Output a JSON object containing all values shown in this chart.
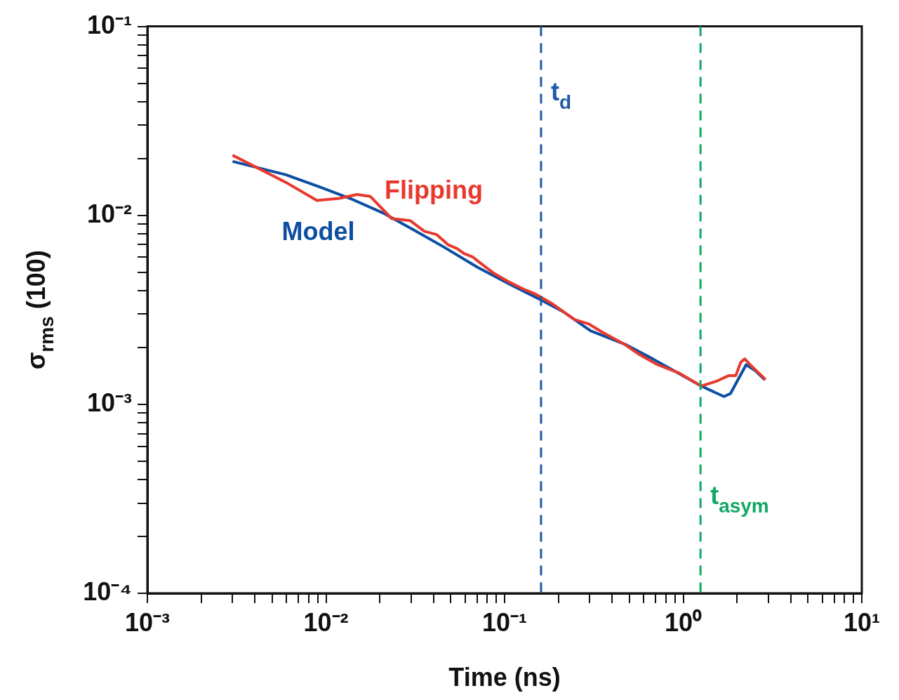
{
  "chart_data": {
    "type": "line",
    "xlabel": "Time (ns)",
    "ylabel": "σ$_{rms}$ (100)",
    "log": "xy",
    "grid": false,
    "xlim": [
      0.001,
      10
    ],
    "ylim": [
      0.0001,
      0.1
    ],
    "xticks": [
      {
        "value": 0.001,
        "label": "10⁻³"
      },
      {
        "value": 0.002,
        "label": null
      },
      {
        "value": 0.003,
        "label": null
      },
      {
        "value": 0.004,
        "label": null
      },
      {
        "value": 0.005,
        "label": null
      },
      {
        "value": 0.006,
        "label": null
      },
      {
        "value": 0.007,
        "label": null
      },
      {
        "value": 0.008,
        "label": null
      },
      {
        "value": 0.009,
        "label": null
      },
      {
        "value": 0.01,
        "label": "10⁻²"
      },
      {
        "value": 0.02,
        "label": null
      },
      {
        "value": 0.03,
        "label": null
      },
      {
        "value": 0.04,
        "label": null
      },
      {
        "value": 0.05,
        "label": null
      },
      {
        "value": 0.06,
        "label": null
      },
      {
        "value": 0.07,
        "label": null
      },
      {
        "value": 0.08,
        "label": null
      },
      {
        "value": 0.09,
        "label": null
      },
      {
        "value": 0.1,
        "label": "10⁻¹"
      },
      {
        "value": 0.2,
        "label": null
      },
      {
        "value": 0.3,
        "label": null
      },
      {
        "value": 0.4,
        "label": null
      },
      {
        "value": 0.5,
        "label": null
      },
      {
        "value": 0.6,
        "label": null
      },
      {
        "value": 0.7,
        "label": null
      },
      {
        "value": 0.8,
        "label": null
      },
      {
        "value": 0.9,
        "label": null
      },
      {
        "value": 1,
        "label": "10⁰"
      },
      {
        "value": 2,
        "label": null
      },
      {
        "value": 3,
        "label": null
      },
      {
        "value": 4,
        "label": null
      },
      {
        "value": 5,
        "label": null
      },
      {
        "value": 6,
        "label": null
      },
      {
        "value": 7,
        "label": null
      },
      {
        "value": 8,
        "label": null
      },
      {
        "value": 9,
        "label": null
      },
      {
        "value": 10,
        "label": "10¹"
      }
    ],
    "yticks": [
      {
        "value": 0.0001,
        "label": "10⁻⁴"
      },
      {
        "value": 0.0002,
        "label": null
      },
      {
        "value": 0.0003,
        "label": null
      },
      {
        "value": 0.0004,
        "label": null
      },
      {
        "value": 0.0005,
        "label": null
      },
      {
        "value": 0.0006,
        "label": null
      },
      {
        "value": 0.0007,
        "label": null
      },
      {
        "value": 0.0008,
        "label": null
      },
      {
        "value": 0.0009,
        "label": null
      },
      {
        "value": 0.001,
        "label": "10⁻³"
      },
      {
        "value": 0.002,
        "label": null
      },
      {
        "value": 0.003,
        "label": null
      },
      {
        "value": 0.004,
        "label": null
      },
      {
        "value": 0.005,
        "label": null
      },
      {
        "value": 0.006,
        "label": null
      },
      {
        "value": 0.007,
        "label": null
      },
      {
        "value": 0.008,
        "label": null
      },
      {
        "value": 0.009,
        "label": null
      },
      {
        "value": 0.01,
        "label": "10⁻²"
      },
      {
        "value": 0.02,
        "label": null
      },
      {
        "value": 0.03,
        "label": null
      },
      {
        "value": 0.04,
        "label": null
      },
      {
        "value": 0.05,
        "label": null
      },
      {
        "value": 0.06,
        "label": null
      },
      {
        "value": 0.07,
        "label": null
      },
      {
        "value": 0.08,
        "label": null
      },
      {
        "value": 0.09,
        "label": null
      },
      {
        "value": 0.1,
        "label": "10⁻¹"
      }
    ],
    "series": [
      {
        "name": "Flipping",
        "color": "#e8392f",
        "x": [
          0.003,
          0.006,
          0.0089,
          0.0119,
          0.0149,
          0.0177,
          0.0233,
          0.0297,
          0.0355,
          0.0417,
          0.0485,
          0.0541,
          0.0591,
          0.0664,
          0.0725,
          0.0867,
          0.104,
          0.127,
          0.148,
          0.182,
          0.246,
          0.294,
          0.352,
          0.472,
          0.565,
          0.719,
          0.94,
          1.26,
          1.55,
          1.8,
          1.97,
          2.1,
          2.21,
          2.4,
          2.64,
          2.89
        ],
        "values": [
          0.0208,
          0.0149,
          0.012,
          0.0123,
          0.0129,
          0.0126,
          0.00962,
          0.00937,
          0.00824,
          0.00791,
          0.00697,
          0.00668,
          0.00629,
          0.00602,
          0.00563,
          0.00495,
          0.00448,
          0.00408,
          0.00384,
          0.00344,
          0.00281,
          0.00267,
          0.00241,
          0.00207,
          0.00184,
          0.00162,
          0.00147,
          0.00125,
          0.00133,
          0.00142,
          0.00142,
          0.00167,
          0.00174,
          0.0016,
          0.00147,
          0.00135
        ]
      },
      {
        "name": "Model",
        "color": "#0c4ea2",
        "x": [
          0.003,
          0.00596,
          0.0093,
          0.0142,
          0.0213,
          0.0305,
          0.0452,
          0.0706,
          0.11,
          0.158,
          0.212,
          0.303,
          0.472,
          0.675,
          0.906,
          1.26,
          1.69,
          1.84,
          2.25,
          2.53,
          2.86
        ],
        "values": [
          0.0193,
          0.0164,
          0.0141,
          0.0121,
          0.0102,
          0.00845,
          0.00684,
          0.00531,
          0.00426,
          0.00359,
          0.0031,
          0.00245,
          0.00208,
          0.00174,
          0.00149,
          0.00125,
          0.0011,
          0.00114,
          0.00162,
          0.00151,
          0.00135
        ]
      }
    ],
    "ref_lines": [
      {
        "axis": "x",
        "value": 0.16,
        "label": "t$_{d}$",
        "color": "#1f5aa6",
        "line_style": "dashed"
      },
      {
        "axis": "x",
        "value": 1.25,
        "label": "t$_{asym}$",
        "color": "#13a865",
        "line_style": "dashed"
      }
    ]
  }
}
